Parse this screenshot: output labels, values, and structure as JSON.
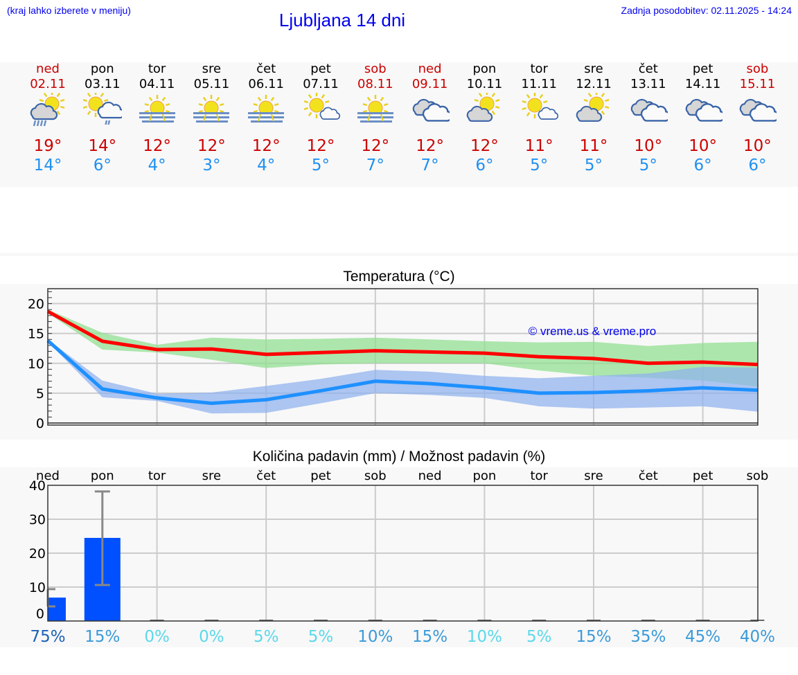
{
  "header": {
    "hint": "(kraj lahko izberete v meniju)",
    "title": "Ljubljana 14 dni",
    "updated": "Zadnja posodobitev: 02.11.2025 - 14:24"
  },
  "colors": {
    "weekend": "#cc0000",
    "weekday": "#000000",
    "max": "#cc0000",
    "min": "#2090f0"
  },
  "days": [
    {
      "name": "ned",
      "date": "02.11",
      "weekend": true,
      "icon": "sun-cloud-rain",
      "max": "19°",
      "min": "14°"
    },
    {
      "name": "pon",
      "date": "03.11",
      "weekend": false,
      "icon": "sun-cloud-light-rain",
      "max": "14°",
      "min": "6°"
    },
    {
      "name": "tor",
      "date": "04.11",
      "weekend": false,
      "icon": "sun-fog",
      "max": "12°",
      "min": "4°"
    },
    {
      "name": "sre",
      "date": "05.11",
      "weekend": false,
      "icon": "sun-fog",
      "max": "12°",
      "min": "3°"
    },
    {
      "name": "čet",
      "date": "06.11",
      "weekend": false,
      "icon": "sun-fog",
      "max": "12°",
      "min": "4°"
    },
    {
      "name": "pet",
      "date": "07.11",
      "weekend": false,
      "icon": "sun-small-cloud",
      "max": "12°",
      "min": "5°"
    },
    {
      "name": "sob",
      "date": "08.11",
      "weekend": true,
      "icon": "sun-fog",
      "max": "12°",
      "min": "7°"
    },
    {
      "name": "ned",
      "date": "09.11",
      "weekend": true,
      "icon": "cloudy",
      "max": "12°",
      "min": "7°"
    },
    {
      "name": "pon",
      "date": "10.11",
      "weekend": false,
      "icon": "sun-behind-cloud",
      "max": "12°",
      "min": "6°"
    },
    {
      "name": "tor",
      "date": "11.11",
      "weekend": false,
      "icon": "sun-small-cloud",
      "max": "11°",
      "min": "5°"
    },
    {
      "name": "sre",
      "date": "12.11",
      "weekend": false,
      "icon": "sun-behind-cloud",
      "max": "11°",
      "min": "5°"
    },
    {
      "name": "čet",
      "date": "13.11",
      "weekend": false,
      "icon": "cloudy",
      "max": "10°",
      "min": "5°"
    },
    {
      "name": "pet",
      "date": "14.11",
      "weekend": false,
      "icon": "cloudy",
      "max": "10°",
      "min": "6°"
    },
    {
      "name": "sob",
      "date": "15.11",
      "weekend": true,
      "icon": "cloudy",
      "max": "10°",
      "min": "6°"
    }
  ],
  "chart_data": [
    {
      "type": "line",
      "title": "Temperatura (°C)",
      "watermark": "© vreme.us & vreme.pro",
      "x": [
        0,
        1,
        2,
        3,
        4,
        5,
        6,
        7,
        8,
        9,
        10,
        11,
        12,
        13
      ],
      "ylim": [
        0,
        22.5
      ],
      "yticks": [
        0,
        5,
        10,
        15,
        20
      ],
      "grid": true,
      "series": [
        {
          "key": "max",
          "color": "#ff0000",
          "values": [
            18.7,
            13.7,
            12.3,
            12.4,
            11.5,
            11.8,
            12.1,
            11.9,
            11.7,
            11.1,
            10.8,
            10.0,
            10.2,
            9.8
          ],
          "band_color": "#8fdf8f",
          "band_upper": [
            19.0,
            15.1,
            13.1,
            14.3,
            14.0,
            14.1,
            14.3,
            14.0,
            13.7,
            13.5,
            13.6,
            12.9,
            13.4,
            13.6
          ],
          "band_lower": [
            18.4,
            12.3,
            11.8,
            10.6,
            9.2,
            9.8,
            10.0,
            10.0,
            10.0,
            8.8,
            7.9,
            7.6,
            7.1,
            6.1
          ]
        },
        {
          "key": "min",
          "color": "#1e90ff",
          "values": [
            13.8,
            5.7,
            4.2,
            3.3,
            3.9,
            5.4,
            7.0,
            6.6,
            5.9,
            5.0,
            5.1,
            5.4,
            5.9,
            5.5
          ],
          "band_color": "#8fb2ee",
          "band_upper": [
            14.0,
            7.1,
            4.9,
            5.1,
            6.2,
            7.4,
            8.9,
            8.6,
            7.9,
            7.5,
            7.9,
            8.3,
            9.4,
            9.3
          ],
          "band_lower": [
            13.6,
            4.3,
            3.7,
            1.6,
            1.7,
            3.3,
            5.0,
            4.7,
            4.2,
            2.8,
            2.4,
            2.6,
            2.8,
            1.9
          ]
        }
      ]
    },
    {
      "type": "bar",
      "title": "Količina padavin (mm) / Možnost padavin (%)",
      "categories": [
        "ned",
        "pon",
        "tor",
        "sre",
        "čet",
        "pet",
        "sob",
        "ned",
        "pon",
        "tor",
        "sre",
        "čet",
        "pet",
        "sob"
      ],
      "ylim": [
        0,
        40
      ],
      "yticks": [
        0,
        10,
        20,
        30,
        40
      ],
      "grid": true,
      "bar_color": "#0050ff",
      "values": [
        6.9,
        24.5,
        0,
        0,
        0,
        0,
        0,
        0,
        0,
        0,
        0,
        0,
        0,
        0
      ],
      "error_low": [
        4.3,
        10.6,
        0,
        0,
        0,
        0,
        0,
        0,
        0,
        0,
        0,
        0,
        0,
        0
      ],
      "error_high": [
        9.4,
        38.2,
        0,
        0,
        0,
        0,
        0,
        0,
        0,
        0,
        0,
        0,
        0,
        0
      ],
      "probability": [
        {
          "label": "75%",
          "color": "#1a62b8"
        },
        {
          "label": "15%",
          "color": "#3a9ad9"
        },
        {
          "label": "0%",
          "color": "#5ad8ea"
        },
        {
          "label": "0%",
          "color": "#5ad8ea"
        },
        {
          "label": "5%",
          "color": "#5ad8ea"
        },
        {
          "label": "5%",
          "color": "#5ad8ea"
        },
        {
          "label": "10%",
          "color": "#3a9ad9"
        },
        {
          "label": "15%",
          "color": "#3a9ad9"
        },
        {
          "label": "10%",
          "color": "#5ad8ea"
        },
        {
          "label": "5%",
          "color": "#5ad8ea"
        },
        {
          "label": "15%",
          "color": "#3a9ad9"
        },
        {
          "label": "35%",
          "color": "#3a9ad9"
        },
        {
          "label": "45%",
          "color": "#3a9ad9"
        },
        {
          "label": "40%",
          "color": "#3a9ad9"
        }
      ]
    }
  ]
}
